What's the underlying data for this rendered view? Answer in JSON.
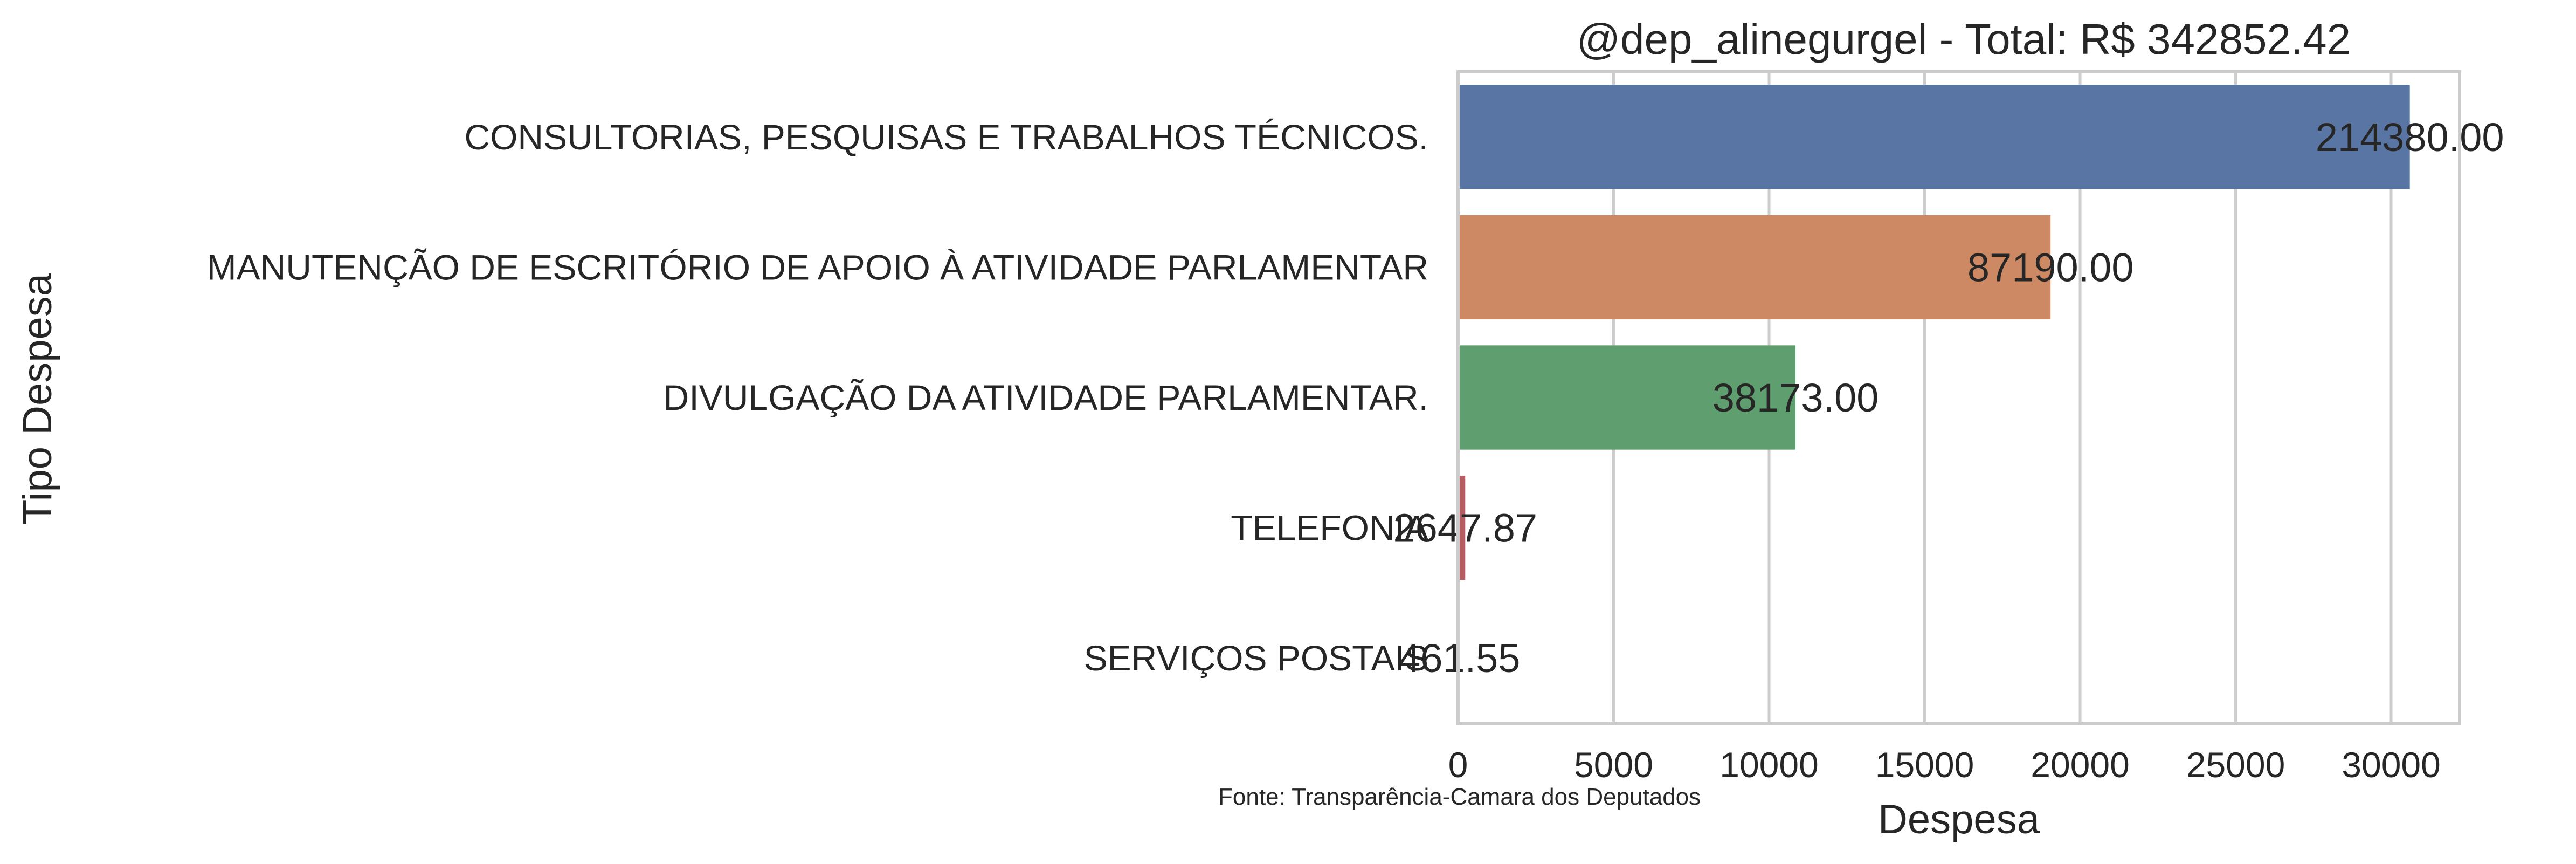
{
  "chart_data": {
    "type": "bar",
    "orientation": "horizontal",
    "title": "@dep_alinegurgel - Total: R$ 342852.42",
    "xlabel": "Despesa",
    "ylabel": "Tipo Despesa",
    "source_note": "Fonte: Transparência-Camara dos Deputados",
    "xlim": [
      0,
      32200
    ],
    "xticks": [
      0,
      5000,
      10000,
      15000,
      20000,
      25000,
      30000
    ],
    "xtick_labels": [
      "0",
      "5000",
      "10000",
      "15000",
      "20000",
      "25000",
      "30000"
    ],
    "grid": "vertical",
    "categories": [
      "CONSULTORIAS, PESQUISAS E TRABALHOS TÉCNICOS.",
      "MANUTENÇÃO DE ESCRITÓRIO DE APOIO À ATIVIDADE PARLAMENTAR",
      "DIVULGAÇÃO DA ATIVIDADE PARLAMENTAR.",
      "TELEFONIA",
      "SERVIÇOS POSTAIS"
    ],
    "values": [
      30600,
      19050,
      10850,
      230,
      40
    ],
    "data_labels": [
      "214380.00",
      "87190.00",
      "38173.00",
      "2647.87",
      "461.55"
    ],
    "colors": [
      "#5875a4",
      "#cc8963",
      "#5f9e6e",
      "#b55d60",
      "#857aab"
    ]
  }
}
